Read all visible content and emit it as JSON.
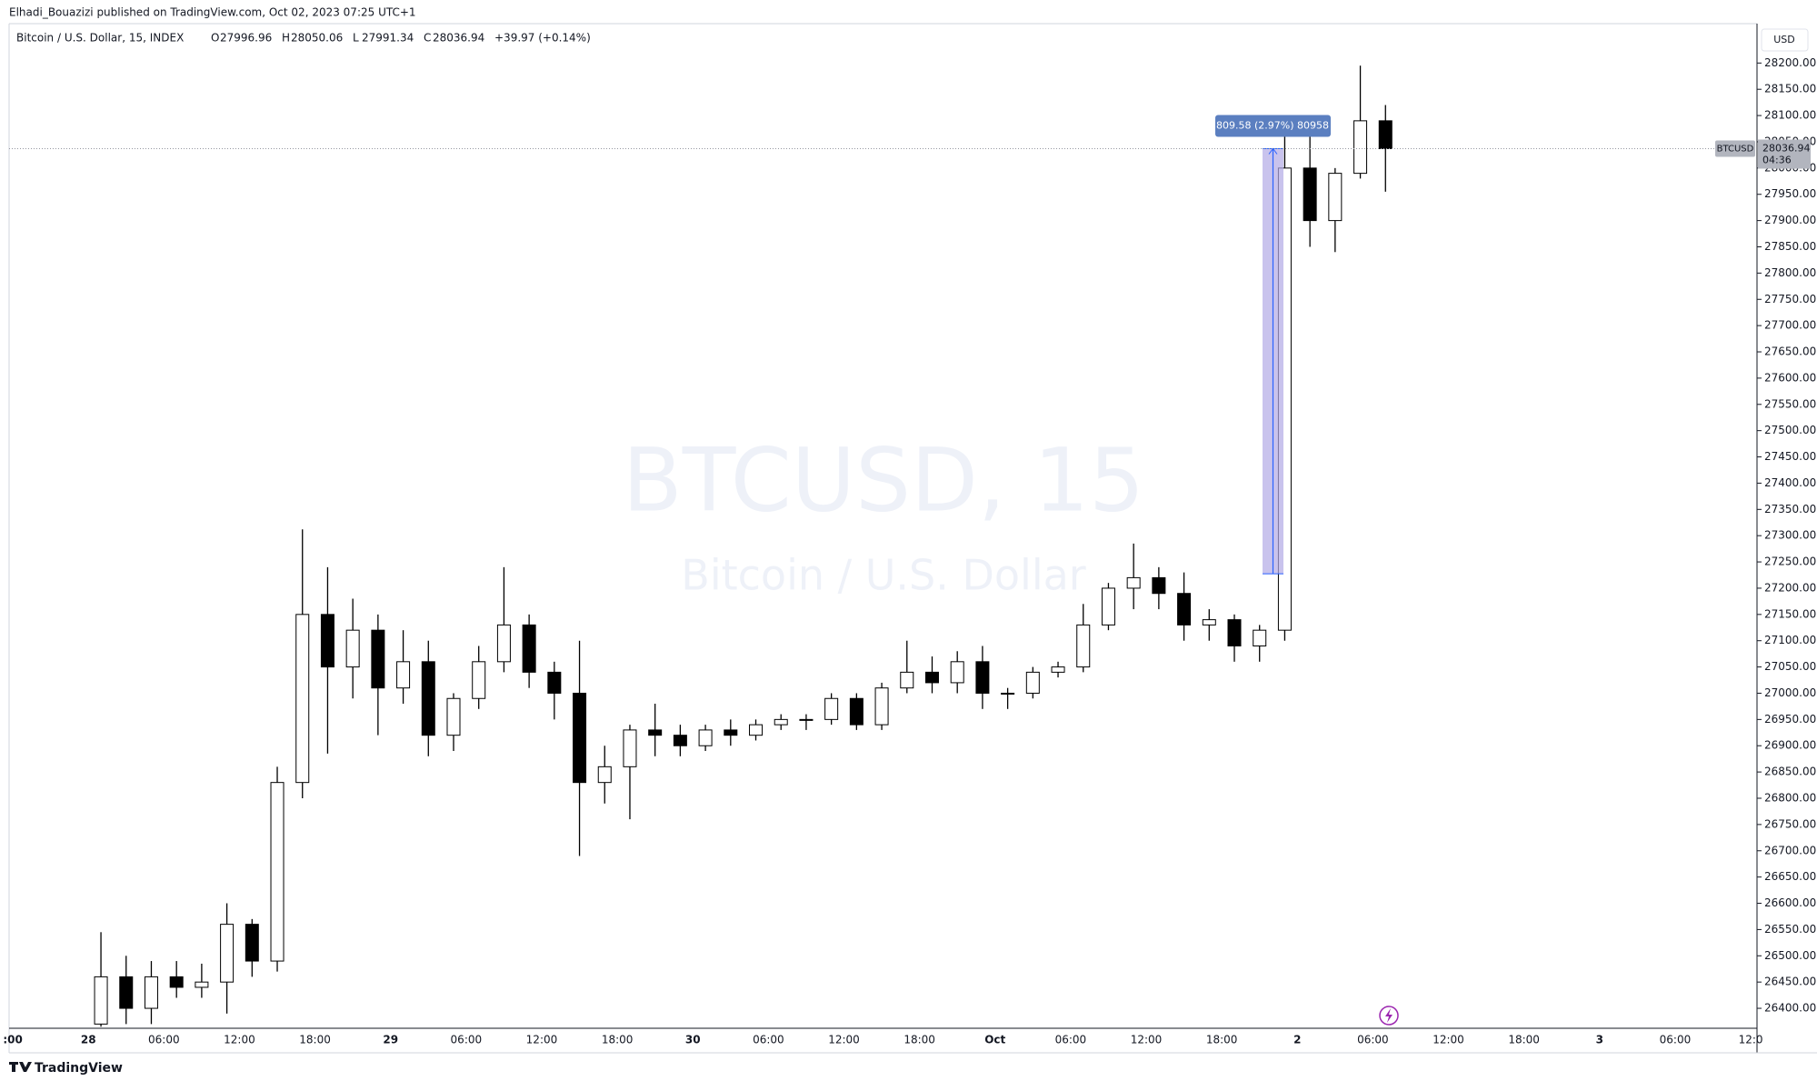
{
  "publish_line": "Elhadi_Bouazizi published on TradingView.com, Oct 02, 2023 07:25 UTC+1",
  "footer_brand": "TradingView",
  "currency_button": "USD",
  "chart_data": {
    "type": "candlestick",
    "symbol_info": "Bitcoin / U.S. Dollar, 15, INDEX",
    "ohlc_header": [
      {
        "label": "O",
        "value": 27996.96
      },
      {
        "label": "H",
        "value": 28050.06
      },
      {
        "label": "L",
        "value": 27991.34
      },
      {
        "label": "C",
        "value": 28036.94
      }
    ],
    "change_text": "+39.97 (+0.14%)",
    "watermark": "BTCUSD, 15",
    "watermark_subtitle": "Bitcoin / U.S. Dollar",
    "categories": [
      ":00",
      null,
      null,
      "28",
      null,
      null,
      "06:00",
      null,
      null,
      "12:00",
      null,
      null,
      "18:00",
      null,
      null,
      "29",
      null,
      null,
      "06:00",
      null,
      null,
      "12:00",
      null,
      null,
      "18:00",
      null,
      null,
      "30",
      null,
      null,
      "06:00",
      null,
      null,
      "12:00",
      null,
      null,
      "18:00",
      null,
      null,
      "Oct",
      null,
      null,
      "06:00",
      null,
      null,
      "12:00",
      null,
      null,
      "18:00",
      null,
      null,
      "2",
      null,
      null,
      "06:00",
      null,
      null,
      "12:00",
      null,
      null,
      "18:00",
      null,
      null,
      "3",
      null,
      null,
      "06:00",
      null,
      null,
      "12:0"
    ],
    "open": [
      null,
      null,
      null,
      26370,
      26460,
      26400,
      26460,
      26440,
      26450,
      26560,
      26490,
      26830,
      27150,
      27050,
      27120,
      27010,
      27060,
      26920,
      26990,
      27060,
      27130,
      27040,
      27000,
      26830,
      26860,
      26930,
      26920,
      26900,
      26930,
      26920,
      26940,
      26950,
      26950,
      26990,
      26940,
      27010,
      27040,
      27020,
      27060,
      27000,
      27000,
      27040,
      27050,
      27130,
      27200,
      27220,
      27190,
      27130,
      27140,
      27090,
      27120,
      28000,
      27900,
      27990,
      28090,
      null,
      null,
      null,
      null,
      null,
      null,
      null,
      null,
      null,
      null,
      null,
      null,
      null,
      null,
      null
    ],
    "high": [
      null,
      null,
      null,
      26545,
      26500,
      26490,
      26490,
      26485,
      26600,
      26570,
      26860,
      27312,
      27240,
      27180,
      27150,
      27120,
      27100,
      27000,
      27090,
      27240,
      27150,
      27060,
      27100,
      26900,
      26940,
      26980,
      26940,
      26940,
      26950,
      26950,
      26960,
      26960,
      27000,
      27000,
      27020,
      27100,
      27070,
      27080,
      27090,
      27010,
      27050,
      27060,
      27170,
      27210,
      27285,
      27240,
      27230,
      27160,
      27150,
      27130,
      28080,
      28060,
      28000,
      28195,
      28120,
      null,
      null,
      null,
      null,
      null,
      null,
      null,
      null,
      null,
      null,
      null,
      null,
      null,
      null,
      null
    ],
    "low": [
      null,
      null,
      null,
      26365,
      26370,
      26370,
      26420,
      26420,
      26390,
      26460,
      26470,
      26800,
      26885,
      26990,
      26920,
      26980,
      26880,
      26890,
      26970,
      27040,
      27010,
      26950,
      26690,
      26790,
      26760,
      26880,
      26880,
      26890,
      26900,
      26910,
      26930,
      26930,
      26940,
      26930,
      26930,
      27000,
      27000,
      27000,
      26970,
      26970,
      26990,
      27030,
      27040,
      27120,
      27160,
      27160,
      27100,
      27100,
      27060,
      27060,
      27100,
      27850,
      27840,
      27980,
      27955,
      null,
      null,
      null,
      null,
      null,
      null,
      null,
      null,
      null,
      null,
      null,
      null,
      null,
      null,
      null
    ],
    "close": [
      null,
      null,
      null,
      26460,
      26400,
      26460,
      26440,
      26450,
      26560,
      26490,
      26830,
      27150,
      27050,
      27120,
      27010,
      27060,
      26920,
      26990,
      27060,
      27130,
      27040,
      27000,
      26830,
      26860,
      26930,
      26920,
      26900,
      26930,
      26920,
      26940,
      26950,
      26950,
      26990,
      26940,
      27010,
      27040,
      27020,
      27060,
      27000,
      27000,
      27040,
      27050,
      27130,
      27200,
      27220,
      27190,
      27130,
      27140,
      27090,
      27120,
      28000,
      27900,
      27990,
      28090,
      28036.94,
      null,
      null,
      null,
      null,
      null,
      null,
      null,
      null,
      null,
      null,
      null,
      null,
      null,
      null,
      null
    ],
    "up_color": "#ffffff",
    "down_color": "#000000",
    "ylim": [
      26362,
      28275
    ],
    "yticks": [
      {
        "value": 26400,
        "label": "26400.00"
      },
      {
        "value": 26450,
        "label": "26450.00"
      },
      {
        "value": 26500,
        "label": "26500.00"
      },
      {
        "value": 26550,
        "label": "26550.00"
      },
      {
        "value": 26600,
        "label": "26600.00"
      },
      {
        "value": 26650,
        "label": "26650.00"
      },
      {
        "value": 26700,
        "label": "26700.00"
      },
      {
        "value": 26750,
        "label": "26750.00"
      },
      {
        "value": 26800,
        "label": "26800.00"
      },
      {
        "value": 26850,
        "label": "26850.00"
      },
      {
        "value": 26900,
        "label": "26900.00"
      },
      {
        "value": 26950,
        "label": "26950.00"
      },
      {
        "value": 27000,
        "label": "27000.00"
      },
      {
        "value": 27050,
        "label": "27050.00"
      },
      {
        "value": 27100,
        "label": "27100.00"
      },
      {
        "value": 27150,
        "label": "27150.00"
      },
      {
        "value": 27200,
        "label": "27200.00"
      },
      {
        "value": 27250,
        "label": "27250.00"
      },
      {
        "value": 27300,
        "label": "27300.00"
      },
      {
        "value": 27350,
        "label": "27350.00"
      },
      {
        "value": 27400,
        "label": "27400.00"
      },
      {
        "value": 27450,
        "label": "27450.00"
      },
      {
        "value": 27500,
        "label": "27500.00"
      },
      {
        "value": 27550,
        "label": "27550.00"
      },
      {
        "value": 27600,
        "label": "27600.00"
      },
      {
        "value": 27650,
        "label": "27650.00"
      },
      {
        "value": 27700,
        "label": "27700.00"
      },
      {
        "value": 27750,
        "label": "27750.00"
      },
      {
        "value": 27800,
        "label": "27800.00"
      },
      {
        "value": 27850,
        "label": "27850.00"
      },
      {
        "value": 27900,
        "label": "27900.00"
      },
      {
        "value": 27950,
        "label": "27950.00"
      },
      {
        "value": 28000,
        "label": "28000.00"
      },
      {
        "value": 28050,
        "label": "28050.00"
      },
      {
        "value": 28100,
        "label": "28100.00"
      },
      {
        "value": 28150,
        "label": "28150.00"
      },
      {
        "value": 28200,
        "label": "28200.00"
      }
    ],
    "measure": {
      "label": "809.58 (2.97%) 80958",
      "from": 27227.36,
      "to": 28036.94,
      "color": "#b2a9e6"
    },
    "last_price": 28036.94,
    "last_price_symbol": "BTCUSD",
    "countdown": "04:36"
  }
}
